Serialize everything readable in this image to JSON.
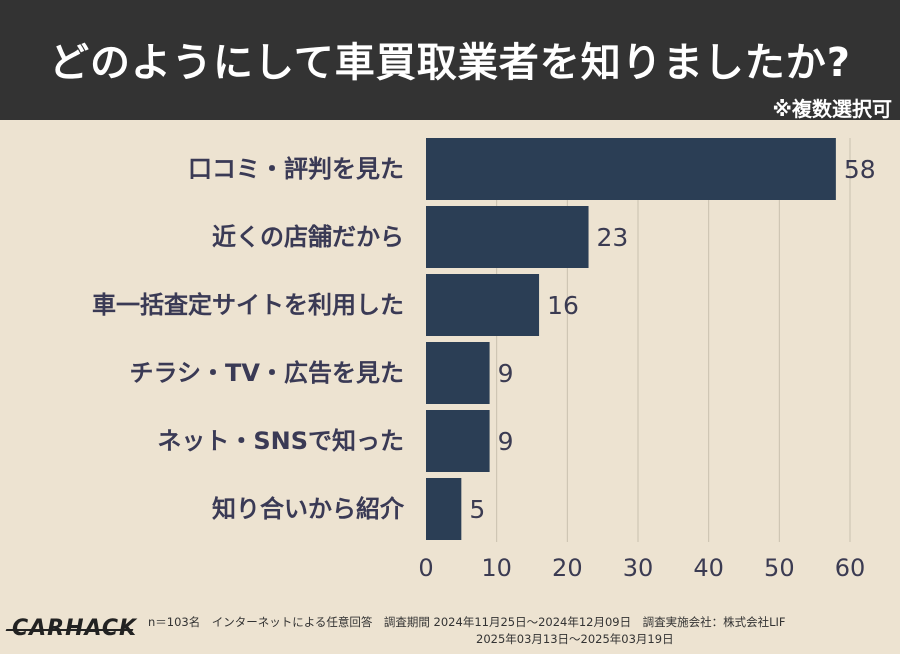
{
  "title": "どのようにして車買取業者を知りましたか?",
  "note": "※複数選択可",
  "chart_data": {
    "type": "bar",
    "orientation": "horizontal",
    "categories": [
      "口コミ・評判を見た",
      "近くの店舗だから",
      "車一括査定サイトを利用した",
      "チラシ・TV・広告を見た",
      "ネット・SNSで知った",
      "知り合いから紹介"
    ],
    "values": [
      58,
      23,
      16,
      9,
      9,
      5
    ],
    "xlim": [
      0,
      60
    ],
    "xticks": [
      0,
      10,
      20,
      30,
      40,
      50,
      60
    ],
    "grid": true,
    "bar_color": "#2b3e55"
  },
  "logo": "CARHACK",
  "footer": {
    "line1": "n＝103名　インターネットによる任意回答　調査期間 2024年11月25日〜2024年12月09日　調査実施会社：株式会社LIF",
    "line2": "2025年03月13日〜2025年03月19日"
  }
}
